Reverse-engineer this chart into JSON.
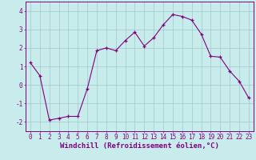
{
  "x": [
    0,
    1,
    2,
    3,
    4,
    5,
    6,
    7,
    8,
    9,
    10,
    11,
    12,
    13,
    14,
    15,
    16,
    17,
    18,
    19,
    20,
    21,
    22,
    23
  ],
  "y": [
    1.2,
    0.5,
    -1.9,
    -1.8,
    -1.7,
    -1.7,
    -0.2,
    1.85,
    2.0,
    1.85,
    2.4,
    2.85,
    2.1,
    2.55,
    3.25,
    3.8,
    3.7,
    3.5,
    2.75,
    1.55,
    1.5,
    0.75,
    0.2,
    -0.7
  ],
  "line_color": "#800080",
  "marker": "+",
  "bg_color": "#c8ecec",
  "grid_color": "#a0c8c8",
  "axis_color": "#800080",
  "xlabel": "Windchill (Refroidissement éolien,°C)",
  "ylim": [
    -2.5,
    4.5
  ],
  "xlim": [
    -0.5,
    23.5
  ],
  "yticks": [
    -2,
    -1,
    0,
    1,
    2,
    3,
    4
  ],
  "xticks": [
    0,
    1,
    2,
    3,
    4,
    5,
    6,
    7,
    8,
    9,
    10,
    11,
    12,
    13,
    14,
    15,
    16,
    17,
    18,
    19,
    20,
    21,
    22,
    23
  ],
  "tick_fontsize": 5.5,
  "label_fontsize": 6.5
}
